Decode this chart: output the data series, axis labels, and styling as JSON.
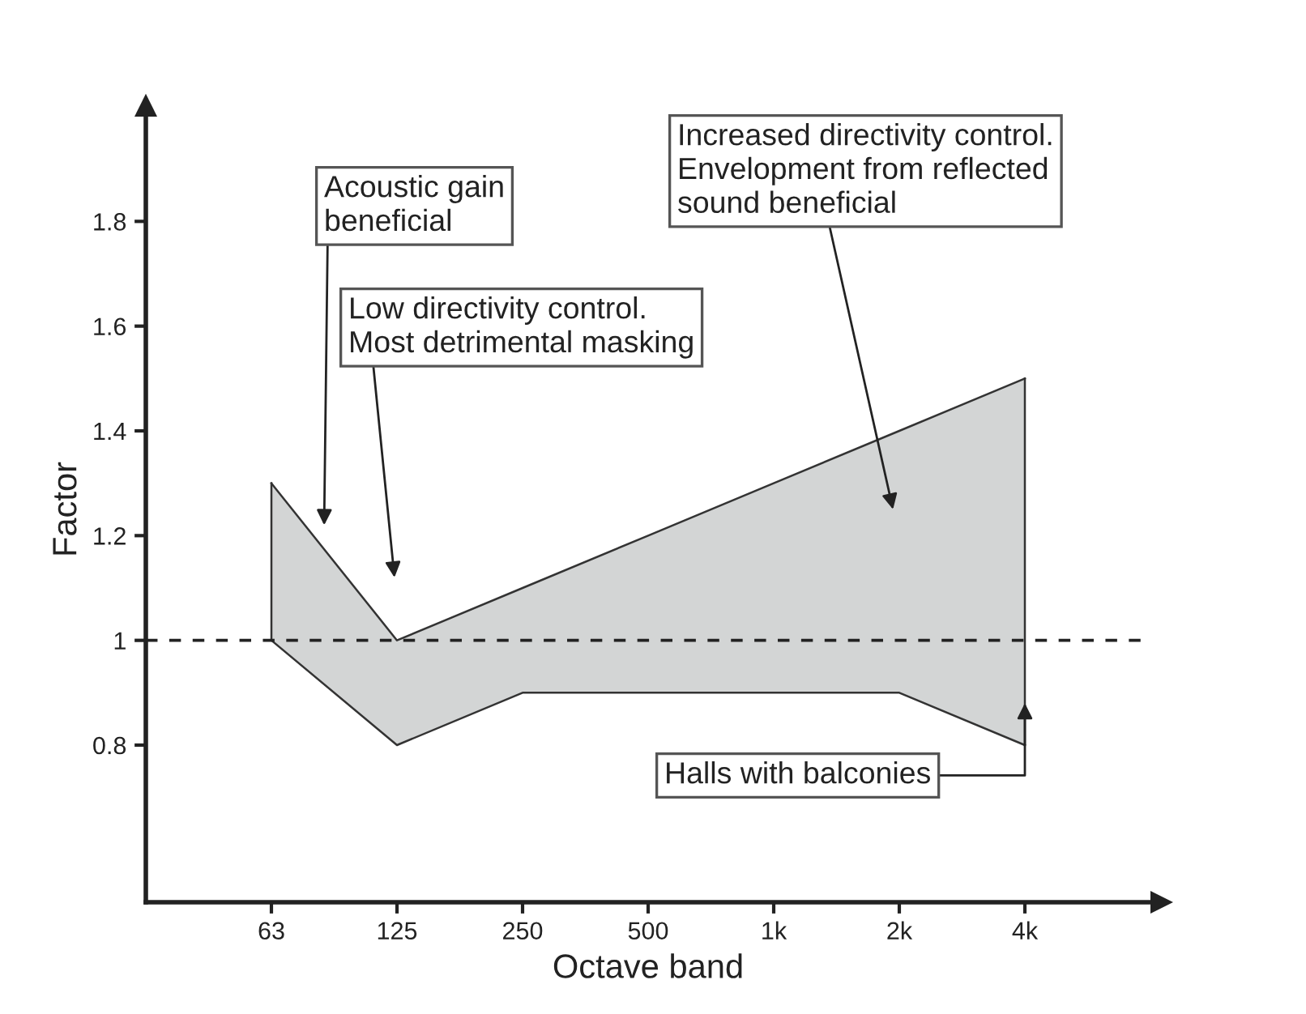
{
  "chart_data": {
    "type": "area",
    "xlabel": "Octave band",
    "ylabel": "Factor",
    "categories": [
      "63",
      "125",
      "250",
      "500",
      "1k",
      "2k",
      "4k"
    ],
    "series": [
      {
        "type": "area",
        "color": "#d3d5d5",
        "values": [
          1.3,
          1.0,
          1.1,
          1.2,
          1.3,
          1.4,
          1.5
        ]
      },
      {
        "type": "area",
        "color": "#ffffff",
        "values": [
          1.0,
          0.8,
          0.9,
          0.9,
          0.9,
          0.9,
          0.8
        ]
      }
    ],
    "ylim": [
      0.5,
      2.0
    ],
    "yticks": [
      0.8,
      1,
      1.2,
      1.4,
      1.6,
      1.8
    ],
    "ref_lines": [
      {
        "axis": "y",
        "value": 1,
        "line_style": "dashed",
        "color": "#222222"
      }
    ],
    "annotations": [
      "Acoustic gain\nbeneficial",
      "Low directivity control.\nMost detrimental masking",
      "Increased directivity control.\nEnvelopment from reflected\nsound beneficial",
      {
        "text": "Halls with balconies",
        "x": "4k",
        "y": 0.88
      }
    ],
    "grid": false,
    "legend": false
  }
}
